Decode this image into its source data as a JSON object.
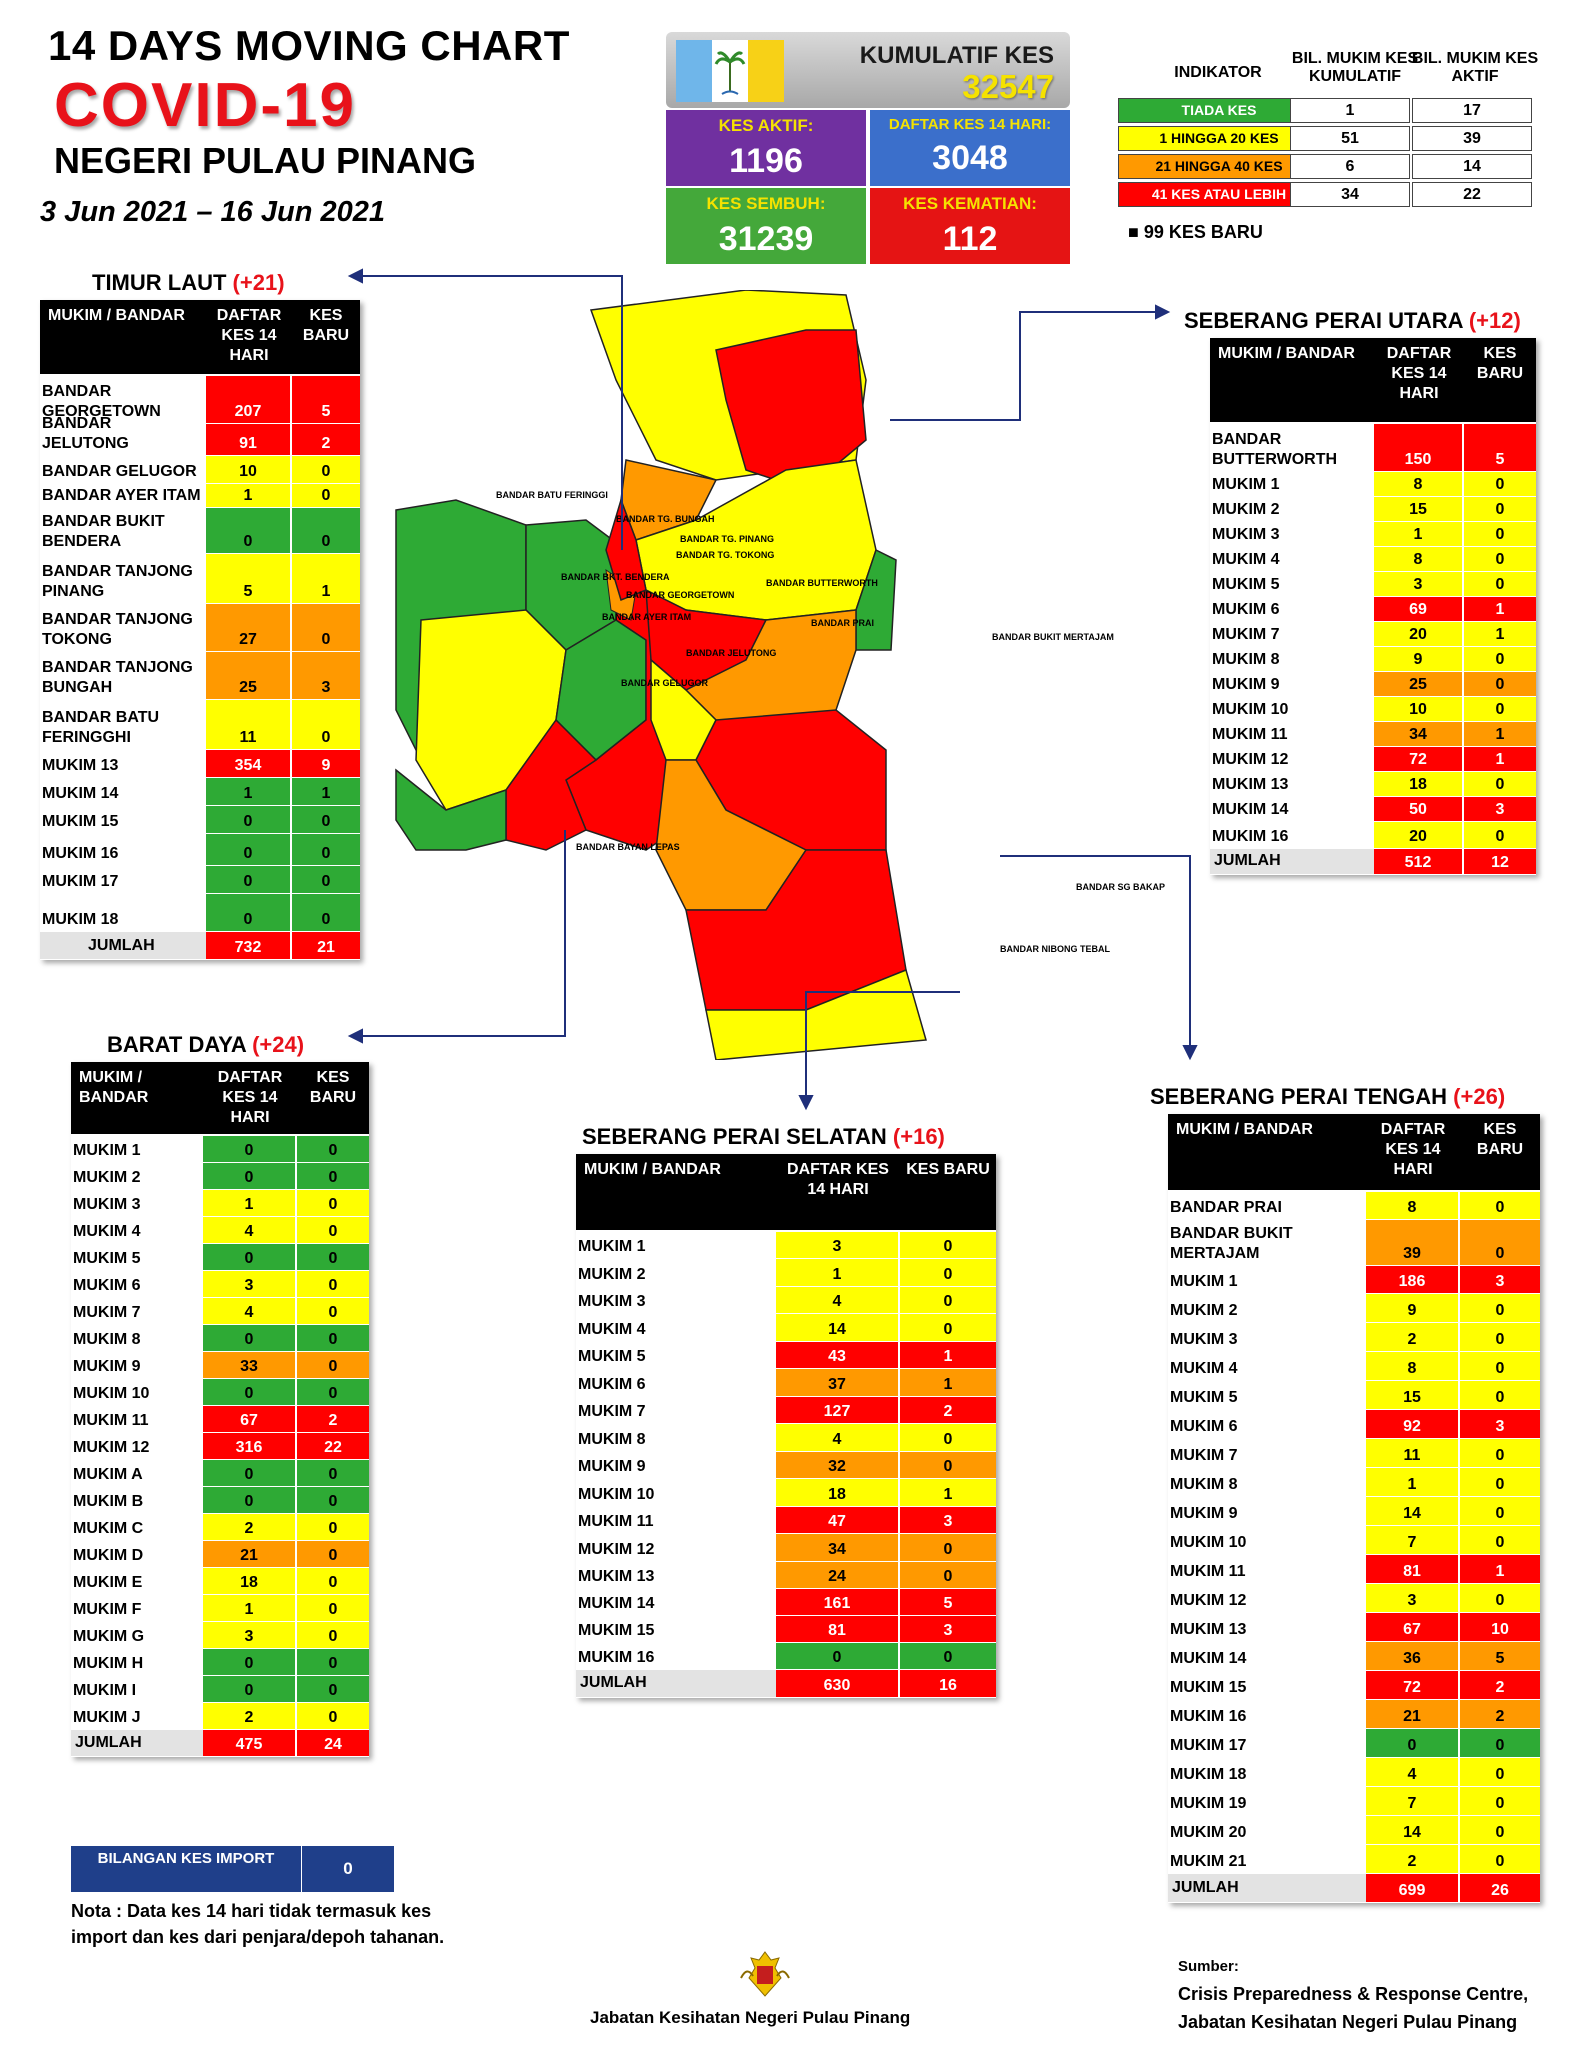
{
  "header": {
    "title_line1": "14  DAYS MOVING CHART",
    "title_line2": "COVID-19",
    "title_line3": "NEGERI PULAU PINANG",
    "dates": "3 Jun 2021 – 16 Jun 2021"
  },
  "summary": {
    "kumulatif_label": "KUMULATIF KES",
    "kumulatif_value": "32547",
    "aktif_label": "KES AKTIF:",
    "aktif_value": "1196",
    "daftar_label": "DAFTAR KES 14 HARI:",
    "daftar_value": "3048",
    "sembuh_label": "KES SEMBUH:",
    "sembuh_value": "31239",
    "kematian_label": "KES KEMATIAN:",
    "kematian_value": "112"
  },
  "indicator": {
    "head_indikator": "INDIKATOR",
    "head_kumulatif": "BIL. MUKIM KES KUMULATIF",
    "head_aktif": "BIL. MUKIM KES AKTIF",
    "rows": [
      {
        "label": "TIADA KES",
        "kumulatif": "1",
        "aktif": "17",
        "color": "#2eaa35"
      },
      {
        "label": "1 HINGGA 20 KES",
        "kumulatif": "51",
        "aktif": "39",
        "color": "#ffff00"
      },
      {
        "label": "21 HINGGA 40 KES",
        "kumulatif": "6",
        "aktif": "14",
        "color": "#ff9900"
      },
      {
        "label": "41 KES ATAU LEBIH",
        "kumulatif": "34",
        "aktif": "22",
        "color": "#ff0000"
      }
    ],
    "new_cases": "99 KES BARU"
  },
  "tables": {
    "timur_laut": {
      "title": "TIMUR LAUT",
      "increment": "(+21)",
      "head_col0": "MUKIM / BANDAR",
      "head_col1": "DAFTAR KES 14 HARI",
      "head_col2": "KES BARU",
      "rows": [
        {
          "name": "BANDAR GEORGETOWN",
          "v1": "207",
          "v2": "5",
          "c1": "r",
          "c2": "r"
        },
        {
          "name": "BANDAR JELUTONG",
          "v1": "91",
          "v2": "2",
          "c1": "r",
          "c2": "r"
        },
        {
          "name": "BANDAR GELUGOR",
          "v1": "10",
          "v2": "0",
          "c1": "y",
          "c2": "y"
        },
        {
          "name": "BANDAR AYER ITAM",
          "v1": "1",
          "v2": "0",
          "c1": "y",
          "c2": "y"
        },
        {
          "name": "BANDAR BUKIT BENDERA",
          "v1": "0",
          "v2": "0",
          "c1": "g",
          "c2": "g"
        },
        {
          "name": "BANDAR TANJONG PINANG",
          "v1": "5",
          "v2": "1",
          "c1": "y",
          "c2": "y"
        },
        {
          "name": "BANDAR TANJONG TOKONG",
          "v1": "27",
          "v2": "0",
          "c1": "o",
          "c2": "o"
        },
        {
          "name": "BANDAR TANJONG BUNGAH",
          "v1": "25",
          "v2": "3",
          "c1": "o",
          "c2": "o"
        },
        {
          "name": "BANDAR BATU FERINGGHI",
          "v1": "11",
          "v2": "0",
          "c1": "y",
          "c2": "y"
        },
        {
          "name": "MUKIM 13",
          "v1": "354",
          "v2": "9",
          "c1": "r",
          "c2": "r"
        },
        {
          "name": "MUKIM 14",
          "v1": "1",
          "v2": "1",
          "c1": "g",
          "c2": "g"
        },
        {
          "name": "MUKIM 15",
          "v1": "0",
          "v2": "0",
          "c1": "g",
          "c2": "g"
        },
        {
          "name": "MUKIM 16",
          "v1": "0",
          "v2": "0",
          "c1": "g",
          "c2": "g"
        },
        {
          "name": "MUKIM 17",
          "v1": "0",
          "v2": "0",
          "c1": "g",
          "c2": "g"
        },
        {
          "name": "MUKIM 18",
          "v1": "0",
          "v2": "0",
          "c1": "g",
          "c2": "g"
        }
      ],
      "total_label": "JUMLAH",
      "total_v1": "732",
      "total_v2": "21"
    },
    "barat_daya": {
      "title": "BARAT DAYA",
      "increment": "(+24)",
      "head_col0": "MUKIM / BANDAR",
      "head_col1": "DAFTAR KES 14 HARI",
      "head_col2": "KES BARU",
      "rows": [
        {
          "name": "MUKIM 1",
          "v1": "0",
          "v2": "0",
          "c1": "g",
          "c2": "g"
        },
        {
          "name": "MUKIM 2",
          "v1": "0",
          "v2": "0",
          "c1": "g",
          "c2": "g"
        },
        {
          "name": "MUKIM 3",
          "v1": "1",
          "v2": "0",
          "c1": "y",
          "c2": "y"
        },
        {
          "name": "MUKIM 4",
          "v1": "4",
          "v2": "0",
          "c1": "y",
          "c2": "y"
        },
        {
          "name": "MUKIM 5",
          "v1": "0",
          "v2": "0",
          "c1": "g",
          "c2": "g"
        },
        {
          "name": "MUKIM 6",
          "v1": "3",
          "v2": "0",
          "c1": "y",
          "c2": "y"
        },
        {
          "name": "MUKIM 7",
          "v1": "4",
          "v2": "0",
          "c1": "y",
          "c2": "y"
        },
        {
          "name": "MUKIM 8",
          "v1": "0",
          "v2": "0",
          "c1": "g",
          "c2": "g"
        },
        {
          "name": "MUKIM 9",
          "v1": "33",
          "v2": "0",
          "c1": "o",
          "c2": "o"
        },
        {
          "name": "MUKIM 10",
          "v1": "0",
          "v2": "0",
          "c1": "g",
          "c2": "g"
        },
        {
          "name": "MUKIM 11",
          "v1": "67",
          "v2": "2",
          "c1": "r",
          "c2": "r"
        },
        {
          "name": "MUKIM 12",
          "v1": "316",
          "v2": "22",
          "c1": "r",
          "c2": "r"
        },
        {
          "name": "MUKIM A",
          "v1": "0",
          "v2": "0",
          "c1": "g",
          "c2": "g"
        },
        {
          "name": "MUKIM B",
          "v1": "0",
          "v2": "0",
          "c1": "g",
          "c2": "g"
        },
        {
          "name": "MUKIM C",
          "v1": "2",
          "v2": "0",
          "c1": "y",
          "c2": "y"
        },
        {
          "name": "MUKIM D",
          "v1": "21",
          "v2": "0",
          "c1": "o",
          "c2": "o"
        },
        {
          "name": "MUKIM E",
          "v1": "18",
          "v2": "0",
          "c1": "y",
          "c2": "y"
        },
        {
          "name": "MUKIM F",
          "v1": "1",
          "v2": "0",
          "c1": "y",
          "c2": "y"
        },
        {
          "name": "MUKIM G",
          "v1": "3",
          "v2": "0",
          "c1": "y",
          "c2": "y"
        },
        {
          "name": "MUKIM H",
          "v1": "0",
          "v2": "0",
          "c1": "g",
          "c2": "g"
        },
        {
          "name": "MUKIM I",
          "v1": "0",
          "v2": "0",
          "c1": "g",
          "c2": "g"
        },
        {
          "name": "MUKIM J",
          "v1": "2",
          "v2": "0",
          "c1": "y",
          "c2": "y"
        }
      ],
      "total_label": "JUMLAH",
      "total_v1": "475",
      "total_v2": "24"
    },
    "sp_utara": {
      "title": "SEBERANG PERAI UTARA",
      "increment": "(+12)",
      "head_col0": "MUKIM / BANDAR",
      "head_col1": "DAFTAR KES 14 HARI",
      "head_col2": "KES BARU",
      "rows": [
        {
          "name": "BANDAR BUTTERWORTH",
          "v1": "150",
          "v2": "5",
          "c1": "r",
          "c2": "r"
        },
        {
          "name": "MUKIM 1",
          "v1": "8",
          "v2": "0",
          "c1": "y",
          "c2": "y"
        },
        {
          "name": "MUKIM 2",
          "v1": "15",
          "v2": "0",
          "c1": "y",
          "c2": "y"
        },
        {
          "name": "MUKIM 3",
          "v1": "1",
          "v2": "0",
          "c1": "y",
          "c2": "y"
        },
        {
          "name": "MUKIM 4",
          "v1": "8",
          "v2": "0",
          "c1": "y",
          "c2": "y"
        },
        {
          "name": "MUKIM 5",
          "v1": "3",
          "v2": "0",
          "c1": "y",
          "c2": "y"
        },
        {
          "name": "MUKIM 6",
          "v1": "69",
          "v2": "1",
          "c1": "r",
          "c2": "r"
        },
        {
          "name": "MUKIM 7",
          "v1": "20",
          "v2": "1",
          "c1": "y",
          "c2": "y"
        },
        {
          "name": "MUKIM 8",
          "v1": "9",
          "v2": "0",
          "c1": "y",
          "c2": "y"
        },
        {
          "name": "MUKIM 9",
          "v1": "25",
          "v2": "0",
          "c1": "o",
          "c2": "o"
        },
        {
          "name": "MUKIM 10",
          "v1": "10",
          "v2": "0",
          "c1": "y",
          "c2": "y"
        },
        {
          "name": "MUKIM 11",
          "v1": "34",
          "v2": "1",
          "c1": "o",
          "c2": "o"
        },
        {
          "name": "MUKIM 12",
          "v1": "72",
          "v2": "1",
          "c1": "r",
          "c2": "r"
        },
        {
          "name": "MUKIM 13",
          "v1": "18",
          "v2": "0",
          "c1": "y",
          "c2": "y"
        },
        {
          "name": "MUKIM 14",
          "v1": "50",
          "v2": "3",
          "c1": "r",
          "c2": "r"
        },
        {
          "name": "MUKIM 16",
          "v1": "20",
          "v2": "0",
          "c1": "y",
          "c2": "y"
        }
      ],
      "total_label": "JUMLAH",
      "total_v1": "512",
      "total_v2": "12"
    },
    "sp_selatan": {
      "title": "SEBERANG PERAI SELATAN",
      "increment": "(+16)",
      "head_col0": "MUKIM / BANDAR",
      "head_col1": "DAFTAR KES 14 HARI",
      "head_col2": "KES BARU",
      "rows": [
        {
          "name": "MUKIM 1",
          "v1": "3",
          "v2": "0",
          "c1": "y",
          "c2": "y"
        },
        {
          "name": "MUKIM 2",
          "v1": "1",
          "v2": "0",
          "c1": "y",
          "c2": "y"
        },
        {
          "name": "MUKIM 3",
          "v1": "4",
          "v2": "0",
          "c1": "y",
          "c2": "y"
        },
        {
          "name": "MUKIM 4",
          "v1": "14",
          "v2": "0",
          "c1": "y",
          "c2": "y"
        },
        {
          "name": "MUKIM 5",
          "v1": "43",
          "v2": "1",
          "c1": "r",
          "c2": "r"
        },
        {
          "name": "MUKIM 6",
          "v1": "37",
          "v2": "1",
          "c1": "o",
          "c2": "o"
        },
        {
          "name": "MUKIM 7",
          "v1": "127",
          "v2": "2",
          "c1": "r",
          "c2": "r"
        },
        {
          "name": "MUKIM 8",
          "v1": "4",
          "v2": "0",
          "c1": "y",
          "c2": "y"
        },
        {
          "name": "MUKIM 9",
          "v1": "32",
          "v2": "0",
          "c1": "o",
          "c2": "o"
        },
        {
          "name": "MUKIM 10",
          "v1": "18",
          "v2": "1",
          "c1": "y",
          "c2": "y"
        },
        {
          "name": "MUKIM 11",
          "v1": "47",
          "v2": "3",
          "c1": "r",
          "c2": "r"
        },
        {
          "name": "MUKIM 12",
          "v1": "34",
          "v2": "0",
          "c1": "o",
          "c2": "o"
        },
        {
          "name": "MUKIM 13",
          "v1": "24",
          "v2": "0",
          "c1": "o",
          "c2": "o"
        },
        {
          "name": "MUKIM 14",
          "v1": "161",
          "v2": "5",
          "c1": "r",
          "c2": "r"
        },
        {
          "name": "MUKIM 15",
          "v1": "81",
          "v2": "3",
          "c1": "r",
          "c2": "r"
        },
        {
          "name": "MUKIM 16",
          "v1": "0",
          "v2": "0",
          "c1": "g",
          "c2": "g"
        }
      ],
      "total_label": "JUMLAH",
      "total_v1": "630",
      "total_v2": "16"
    },
    "sp_tengah": {
      "title": "SEBERANG PERAI TENGAH",
      "increment": "(+26)",
      "head_col0": "MUKIM / BANDAR",
      "head_col1": "DAFTAR KES 14 HARI",
      "head_col2": "KES BARU",
      "rows": [
        {
          "name": "BANDAR PRAI",
          "v1": "8",
          "v2": "0",
          "c1": "y",
          "c2": "y"
        },
        {
          "name": "BANDAR BUKIT MERTAJAM",
          "v1": "39",
          "v2": "0",
          "c1": "o",
          "c2": "o"
        },
        {
          "name": "MUKIM 1",
          "v1": "186",
          "v2": "3",
          "c1": "r",
          "c2": "r"
        },
        {
          "name": "MUKIM 2",
          "v1": "9",
          "v2": "0",
          "c1": "y",
          "c2": "y"
        },
        {
          "name": "MUKIM 3",
          "v1": "2",
          "v2": "0",
          "c1": "y",
          "c2": "y"
        },
        {
          "name": "MUKIM 4",
          "v1": "8",
          "v2": "0",
          "c1": "y",
          "c2": "y"
        },
        {
          "name": "MUKIM 5",
          "v1": "15",
          "v2": "0",
          "c1": "y",
          "c2": "y"
        },
        {
          "name": "MUKIM 6",
          "v1": "92",
          "v2": "3",
          "c1": "r",
          "c2": "r"
        },
        {
          "name": "MUKIM 7",
          "v1": "11",
          "v2": "0",
          "c1": "y",
          "c2": "y"
        },
        {
          "name": "MUKIM 8",
          "v1": "1",
          "v2": "0",
          "c1": "y",
          "c2": "y"
        },
        {
          "name": "MUKIM 9",
          "v1": "14",
          "v2": "0",
          "c1": "y",
          "c2": "y"
        },
        {
          "name": "MUKIM 10",
          "v1": "7",
          "v2": "0",
          "c1": "y",
          "c2": "y"
        },
        {
          "name": "MUKIM 11",
          "v1": "81",
          "v2": "1",
          "c1": "r",
          "c2": "r"
        },
        {
          "name": "MUKIM 12",
          "v1": "3",
          "v2": "0",
          "c1": "y",
          "c2": "y"
        },
        {
          "name": "MUKIM 13",
          "v1": "67",
          "v2": "10",
          "c1": "r",
          "c2": "r"
        },
        {
          "name": "MUKIM 14",
          "v1": "36",
          "v2": "5",
          "c1": "o",
          "c2": "o"
        },
        {
          "name": "MUKIM 15",
          "v1": "72",
          "v2": "2",
          "c1": "r",
          "c2": "r"
        },
        {
          "name": "MUKIM 16",
          "v1": "21",
          "v2": "2",
          "c1": "o",
          "c2": "o"
        },
        {
          "name": "MUKIM 17",
          "v1": "0",
          "v2": "0",
          "c1": "g",
          "c2": "g"
        },
        {
          "name": "MUKIM 18",
          "v1": "4",
          "v2": "0",
          "c1": "y",
          "c2": "y"
        },
        {
          "name": "MUKIM 19",
          "v1": "7",
          "v2": "0",
          "c1": "y",
          "c2": "y"
        },
        {
          "name": "MUKIM 20",
          "v1": "14",
          "v2": "0",
          "c1": "y",
          "c2": "y"
        },
        {
          "name": "MUKIM 21",
          "v1": "2",
          "v2": "0",
          "c1": "y",
          "c2": "y"
        }
      ],
      "total_label": "JUMLAH",
      "total_v1": "699",
      "total_v2": "26"
    }
  },
  "import": {
    "label": "BILANGAN KES IMPORT",
    "value": "0"
  },
  "nota": "Nota : Data kes 14 hari tidak termasuk kes import dan kes dari penjara/depoh tahanan.",
  "footer": {
    "center": "Jabatan Kesihatan Negeri Pulau Pinang",
    "sumber_label": "Sumber:",
    "sumber_line1": "Crisis Preparedness & Response Centre,",
    "sumber_line2": "Jabatan Kesihatan Negeri Pulau Pinang"
  },
  "map_labels": {
    "batu_feringgi": "BANDAR BATU FERINGGI",
    "tg_bungah": "BANDAR TG. BUNGAH",
    "tg_pinang": "BANDAR TG. PINANG",
    "tg_tokong": "BANDAR TG. TOKONG",
    "butterworth": "BANDAR BUTTERWORTH",
    "georgetown": "BANDAR GEORGETOWN",
    "ayer_itam": "BANDAR AYER ITAM",
    "jelutong": "BANDAR JELUTONG",
    "gelugor": "BANDAR GELUGOR",
    "bkt_bendera": "BANDAR BKT. BENDERA",
    "prai": "BANDAR PRAI",
    "bukit_mertajam": "BANDAR BUKIT MERTAJAM",
    "sg_bakap": "BANDAR SG BAKAP",
    "nibong_tebal": "BANDAR NIBONG TEBAL",
    "bayan_lepas": "BANDAR BAYAN LEPAS"
  }
}
